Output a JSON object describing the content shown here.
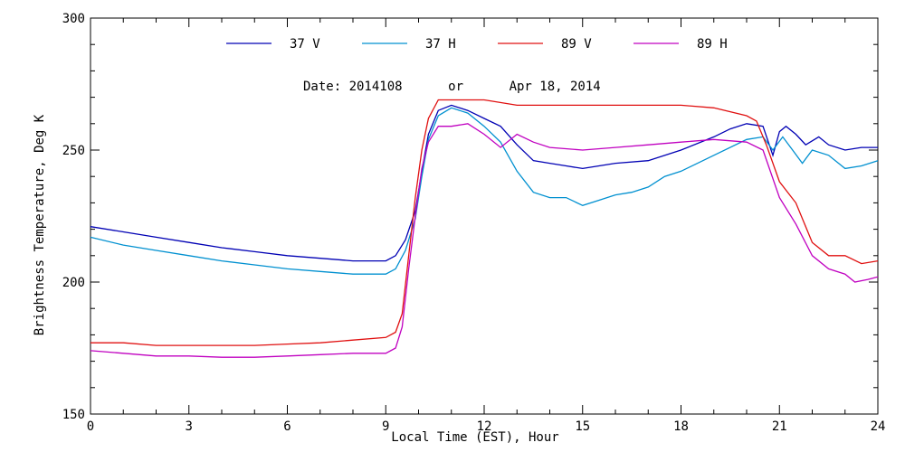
{
  "chart_data": {
    "type": "line",
    "title": "",
    "subtitle": "Date: 2014108      or      Apr 18, 2014",
    "xlabel": "Local Time (EST), Hour",
    "ylabel": "Brightness Temperature, Deg K",
    "xlim": [
      0,
      24
    ],
    "ylim": [
      150,
      300
    ],
    "x_ticks": [
      "0",
      "3",
      "6",
      "9",
      "12",
      "15",
      "18",
      "21",
      "24"
    ],
    "y_ticks": [
      "150",
      "200",
      "250",
      "300"
    ],
    "grid": false,
    "legend_position": "top-center",
    "series": [
      {
        "name": "37 V",
        "color": "#0000b4",
        "points": [
          [
            0,
            221
          ],
          [
            1,
            219
          ],
          [
            2,
            217
          ],
          [
            3,
            215
          ],
          [
            4,
            213
          ],
          [
            5,
            211.5
          ],
          [
            6,
            210
          ],
          [
            7,
            209
          ],
          [
            8,
            208
          ],
          [
            9,
            208
          ],
          [
            9.3,
            210
          ],
          [
            9.6,
            216
          ],
          [
            9.9,
            227
          ],
          [
            10.1,
            242
          ],
          [
            10.3,
            256
          ],
          [
            10.6,
            265
          ],
          [
            11,
            267
          ],
          [
            11.5,
            265
          ],
          [
            12,
            262
          ],
          [
            12.5,
            259
          ],
          [
            13,
            252
          ],
          [
            13.5,
            246
          ],
          [
            14,
            245
          ],
          [
            14.5,
            244
          ],
          [
            15,
            243
          ],
          [
            15.5,
            244
          ],
          [
            16,
            245
          ],
          [
            17,
            246
          ],
          [
            18,
            250
          ],
          [
            19,
            255
          ],
          [
            19.5,
            258
          ],
          [
            20,
            260
          ],
          [
            20.5,
            259
          ],
          [
            20.8,
            248
          ],
          [
            21,
            257
          ],
          [
            21.2,
            259
          ],
          [
            21.5,
            256
          ],
          [
            21.8,
            252
          ],
          [
            22.2,
            255
          ],
          [
            22.5,
            252
          ],
          [
            23,
            250
          ],
          [
            23.5,
            251
          ],
          [
            24,
            251
          ]
        ]
      },
      {
        "name": "37 H",
        "color": "#0090d0",
        "points": [
          [
            0,
            217
          ],
          [
            1,
            214
          ],
          [
            2,
            212
          ],
          [
            3,
            210
          ],
          [
            4,
            208
          ],
          [
            5,
            206.5
          ],
          [
            6,
            205
          ],
          [
            7,
            204
          ],
          [
            8,
            203
          ],
          [
            9,
            203
          ],
          [
            9.3,
            205
          ],
          [
            9.6,
            212
          ],
          [
            9.9,
            224
          ],
          [
            10.1,
            240
          ],
          [
            10.3,
            254
          ],
          [
            10.6,
            263
          ],
          [
            11,
            266
          ],
          [
            11.5,
            264
          ],
          [
            12,
            259
          ],
          [
            12.5,
            253
          ],
          [
            13,
            242
          ],
          [
            13.5,
            234
          ],
          [
            14,
            232
          ],
          [
            14.5,
            232
          ],
          [
            15,
            229
          ],
          [
            15.5,
            231
          ],
          [
            16,
            233
          ],
          [
            16.5,
            234
          ],
          [
            17,
            236
          ],
          [
            17.5,
            240
          ],
          [
            18,
            242
          ],
          [
            19,
            248
          ],
          [
            20,
            254
          ],
          [
            20.5,
            255
          ],
          [
            20.8,
            250
          ],
          [
            21.1,
            255
          ],
          [
            21.4,
            250
          ],
          [
            21.7,
            245
          ],
          [
            22,
            250
          ],
          [
            22.5,
            248
          ],
          [
            23,
            243
          ],
          [
            23.5,
            244
          ],
          [
            24,
            246
          ]
        ]
      },
      {
        "name": "89 V",
        "color": "#e01010",
        "points": [
          [
            0,
            177
          ],
          [
            1,
            177
          ],
          [
            2,
            176
          ],
          [
            3,
            176
          ],
          [
            4,
            176
          ],
          [
            5,
            176
          ],
          [
            6,
            176.5
          ],
          [
            7,
            177
          ],
          [
            8,
            178
          ],
          [
            9,
            179
          ],
          [
            9.3,
            181
          ],
          [
            9.5,
            188
          ],
          [
            9.7,
            210
          ],
          [
            9.9,
            232
          ],
          [
            10.1,
            250
          ],
          [
            10.3,
            262
          ],
          [
            10.6,
            269
          ],
          [
            11,
            269
          ],
          [
            12,
            269
          ],
          [
            13,
            267
          ],
          [
            14,
            267
          ],
          [
            15,
            267
          ],
          [
            16,
            267
          ],
          [
            17,
            267
          ],
          [
            18,
            267
          ],
          [
            19,
            266
          ],
          [
            20,
            263
          ],
          [
            20.3,
            261
          ],
          [
            20.6,
            252
          ],
          [
            21,
            238
          ],
          [
            21.5,
            230
          ],
          [
            22,
            215
          ],
          [
            22.5,
            210
          ],
          [
            23,
            210
          ],
          [
            23.5,
            207
          ],
          [
            24,
            208
          ]
        ]
      },
      {
        "name": "89 H",
        "color": "#c000c0",
        "points": [
          [
            0,
            174
          ],
          [
            1,
            173
          ],
          [
            2,
            172
          ],
          [
            3,
            172
          ],
          [
            4,
            171.5
          ],
          [
            5,
            171.5
          ],
          [
            6,
            172
          ],
          [
            7,
            172.5
          ],
          [
            8,
            173
          ],
          [
            9,
            173
          ],
          [
            9.3,
            175
          ],
          [
            9.5,
            183
          ],
          [
            9.7,
            205
          ],
          [
            9.9,
            225
          ],
          [
            10.1,
            243
          ],
          [
            10.3,
            253
          ],
          [
            10.6,
            259
          ],
          [
            11,
            259
          ],
          [
            11.5,
            260
          ],
          [
            12,
            256
          ],
          [
            12.5,
            251
          ],
          [
            13,
            256
          ],
          [
            13.5,
            253
          ],
          [
            14,
            251
          ],
          [
            15,
            250
          ],
          [
            16,
            251
          ],
          [
            17,
            252
          ],
          [
            18,
            253
          ],
          [
            19,
            254
          ],
          [
            20,
            253
          ],
          [
            20.5,
            250
          ],
          [
            21,
            232
          ],
          [
            21.5,
            222
          ],
          [
            22,
            210
          ],
          [
            22.5,
            205
          ],
          [
            23,
            203
          ],
          [
            23.3,
            200
          ],
          [
            23.7,
            201
          ],
          [
            24,
            202
          ]
        ]
      }
    ]
  }
}
